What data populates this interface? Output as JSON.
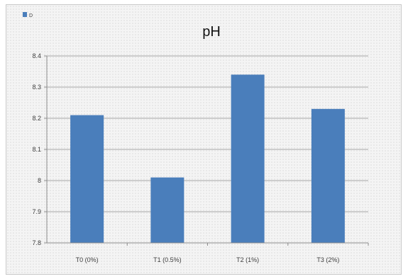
{
  "chart_data": {
    "type": "bar",
    "title": "pH",
    "xlabel": "",
    "ylabel": "",
    "categories": [
      "T0 (0%)",
      "T1 (0.5%)",
      "T2 (1%)",
      "T3 (2%)"
    ],
    "series": [
      {
        "name": "D",
        "color": "#4a7ebb",
        "values": [
          8.21,
          8.01,
          8.34,
          8.23
        ]
      }
    ],
    "ylim": [
      7.8,
      8.4
    ],
    "yticks": [
      7.8,
      7.9,
      8,
      8.1,
      8.2,
      8.3,
      8.4
    ],
    "ytick_labels": [
      "7.8",
      "7.9",
      "8",
      "8.1",
      "8.2",
      "8.3",
      "8.4"
    ],
    "grid": true,
    "legend_position": "top-left"
  },
  "colors": {
    "bar": "#4a7ebb",
    "gridline": "#a6a6a6",
    "axis": "#8c8c8c"
  }
}
